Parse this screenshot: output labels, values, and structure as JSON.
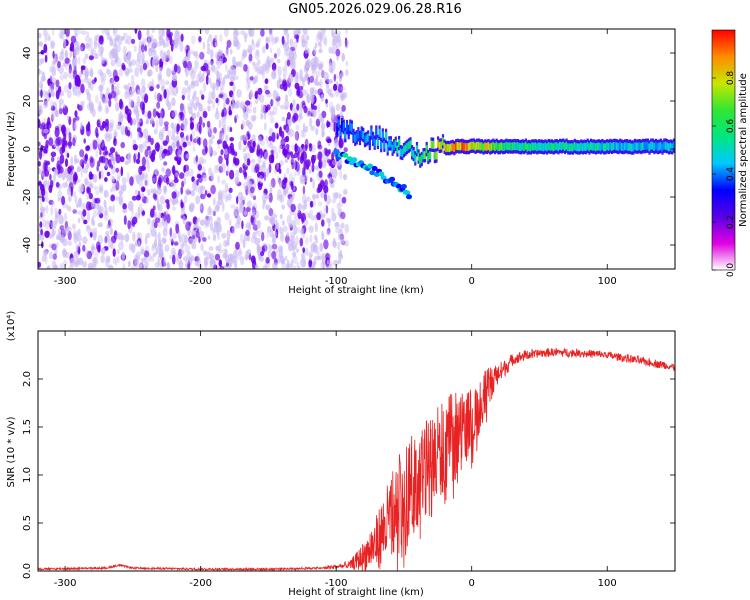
{
  "title": "GN05.2026.029.06.28.R16",
  "colors": {
    "background": "#ffffff",
    "axis": "#000000",
    "snr_line": "#e82222",
    "scatter_low": "#c9b8f2",
    "scatter_high": "#6a00e8"
  },
  "chart_data": [
    {
      "type": "heatmap",
      "title": "",
      "xlabel": "Height of straight line (km)",
      "ylabel": "Frequency (Hz)",
      "xlim": [
        -320,
        150
      ],
      "ylim": [
        -50,
        50
      ],
      "xticks": [
        -300,
        -200,
        -100,
        0,
        100
      ],
      "xtick_labels": [
        "-300",
        "-200",
        "-100",
        "0",
        "100"
      ],
      "yticks": [
        -40,
        -20,
        0,
        20,
        40
      ],
      "ytick_labels": [
        "-40",
        "-20",
        "0",
        "20",
        "40"
      ],
      "colorbar": {
        "label": "Normalized spectral amplitude",
        "range": [
          0,
          1
        ],
        "ticks": [
          0.0,
          0.2,
          0.4,
          0.6,
          0.8
        ],
        "tick_labels": [
          "0.0",
          "0.2",
          "0.4",
          "0.6",
          "0.8"
        ],
        "colormap": [
          "#ffffff",
          "#e000e0",
          "#5a00e6",
          "#0000ff",
          "#00c8ff",
          "#00e680",
          "#32e632",
          "#c8e600",
          "#ff8c00",
          "#ff0000"
        ]
      },
      "noise_region": {
        "x_range": [
          -320,
          -100
        ],
        "freq_range": [
          -50,
          50
        ],
        "amplitude": "low (0.0-0.2)"
      },
      "signal_trace": [
        {
          "x": -100,
          "freq": 8,
          "amplitude": 0.35
        },
        {
          "x": -85,
          "freq": 6,
          "amplitude": 0.4
        },
        {
          "x": -70,
          "freq": 4,
          "amplitude": 0.45
        },
        {
          "x": -55,
          "freq": 2,
          "amplitude": 0.5
        },
        {
          "x": -40,
          "freq": -3,
          "amplitude": 0.55
        },
        {
          "x": -25,
          "freq": 0,
          "amplitude": 0.75
        },
        {
          "x": -10,
          "freq": 1,
          "amplitude": 0.9
        },
        {
          "x": 0,
          "freq": 1,
          "amplitude": 0.85
        },
        {
          "x": 30,
          "freq": 1,
          "amplitude": 0.55
        },
        {
          "x": 80,
          "freq": 1,
          "amplitude": 0.5
        },
        {
          "x": 150,
          "freq": 1,
          "amplitude": 0.45
        }
      ],
      "diagonal_branch": [
        {
          "x": -100,
          "freq": -2
        },
        {
          "x": -80,
          "freq": -7
        },
        {
          "x": -60,
          "freq": -13
        },
        {
          "x": -45,
          "freq": -19
        }
      ],
      "band_halfwidth_hz": 3
    },
    {
      "type": "line",
      "title": "",
      "xlabel": "Height of straight line (km)",
      "ylabel": "SNR (10 * v/v)",
      "scale_label": "(x10⁴)",
      "xlim": [
        -320,
        150
      ],
      "ylim": [
        0,
        2.5
      ],
      "xticks": [
        -300,
        -200,
        -100,
        0,
        100
      ],
      "xtick_labels": [
        "-300",
        "-200",
        "-100",
        "0",
        "100"
      ],
      "yticks": [
        0.0,
        0.5,
        1.0,
        1.5,
        2.0
      ],
      "ytick_labels": [
        "0.0",
        "0.5",
        "1.0",
        "1.5",
        "2.0"
      ],
      "series": [
        {
          "name": "SNR",
          "x": [
            -320,
            -270,
            -260,
            -250,
            -200,
            -150,
            -110,
            -90,
            -80,
            -70,
            -60,
            -50,
            -40,
            -30,
            -20,
            -10,
            0,
            10,
            20,
            30,
            40,
            60,
            80,
            100,
            120,
            140,
            150
          ],
          "y": [
            0.02,
            0.03,
            0.06,
            0.03,
            0.02,
            0.02,
            0.03,
            0.06,
            0.15,
            0.3,
            0.55,
            0.8,
            0.95,
            1.1,
            1.3,
            1.45,
            1.55,
            1.85,
            2.05,
            2.2,
            2.25,
            2.28,
            2.27,
            2.25,
            2.2,
            2.15,
            2.12
          ],
          "noise_amplitude": [
            0,
            0,
            0,
            0,
            0,
            0,
            0.01,
            0.04,
            0.15,
            0.3,
            0.45,
            0.55,
            0.5,
            0.55,
            0.5,
            0.45,
            0.35,
            0.25,
            0.12,
            0.06,
            0.05,
            0.04,
            0.04,
            0.04,
            0.04,
            0.04,
            0.04
          ]
        }
      ]
    }
  ]
}
